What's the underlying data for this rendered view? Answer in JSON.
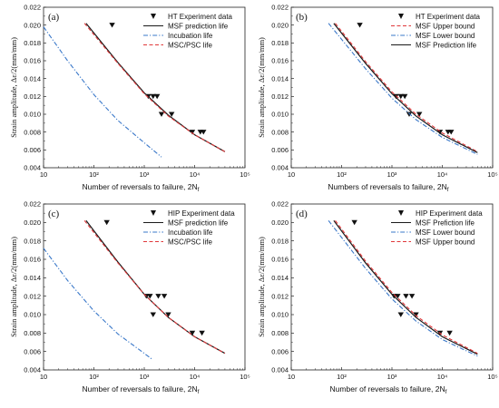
{
  "colors": {
    "msf": "#1a1a1a",
    "incubation": "#3a78c9",
    "msc_psc": "#e0383a",
    "upper": "#e0383a",
    "lower": "#3a78c9",
    "marker": "#111111"
  },
  "chart_data": [
    {
      "type": "line",
      "panel_label": "(a)",
      "xlabel": "Number of reversals to failure, 2N",
      "xlabel_sub": "f",
      "ylabel": "Strain amplitude, Δε/2(mm/mm)",
      "xscale": "log",
      "xlim": [
        10,
        100000
      ],
      "ylim": [
        0.004,
        0.022
      ],
      "xticks": [
        "10",
        "10²",
        "10³",
        "10⁴",
        "10⁵"
      ],
      "yticks": [
        "0.004",
        "0.006",
        "0.008",
        "0.010",
        "0.012",
        "0.014",
        "0.016",
        "0.018",
        "0.020",
        "0.022"
      ],
      "legend_position": "top-right",
      "series": [
        {
          "name": "HT Experiment data",
          "kind": "scatter",
          "color": "#111111",
          "x": [
            230,
            1200,
            1500,
            1800,
            2200,
            3500,
            9000,
            13000,
            15000
          ],
          "y": [
            0.02,
            0.012,
            0.012,
            0.012,
            0.01,
            0.01,
            0.008,
            0.008,
            0.008
          ]
        },
        {
          "name": "MSF prediction life",
          "kind": "line",
          "style": "solid",
          "color": "#1a1a1a",
          "x": [
            70,
            300,
            1000,
            3000,
            10000,
            40000
          ],
          "y": [
            0.0202,
            0.0158,
            0.0124,
            0.0099,
            0.0077,
            0.0058
          ]
        },
        {
          "name": "Incubation life",
          "kind": "line",
          "style": "dashdot",
          "color": "#3a78c9",
          "x": [
            10,
            30,
            100,
            300,
            1000,
            2200
          ],
          "y": [
            0.0198,
            0.016,
            0.0122,
            0.0093,
            0.0068,
            0.0052
          ]
        },
        {
          "name": "MSC/PSC life",
          "kind": "line",
          "style": "dashed",
          "color": "#e0383a",
          "x": [
            65,
            300,
            1000,
            3000,
            10000,
            40000
          ],
          "y": [
            0.0202,
            0.0157,
            0.0123,
            0.0098,
            0.0077,
            0.0058
          ]
        }
      ]
    },
    {
      "type": "line",
      "panel_label": "(b)",
      "xlabel": "Numbers of reversals to failure, 2N",
      "xlabel_sub": "f",
      "ylabel": "Strain amplitude, Δε/2(mm/mm)",
      "xscale": "log",
      "xlim": [
        10,
        100000
      ],
      "ylim": [
        0.004,
        0.022
      ],
      "xticks": [
        "10",
        "10²",
        "10³",
        "10⁴",
        "10⁵"
      ],
      "yticks": [
        "0.004",
        "0.006",
        "0.008",
        "0.010",
        "0.012",
        "0.014",
        "0.016",
        "0.018",
        "0.020",
        "0.022"
      ],
      "legend_position": "top-right",
      "series": [
        {
          "name": "HT Experiment data",
          "kind": "scatter",
          "color": "#111111",
          "x": [
            230,
            1200,
            1500,
            1800,
            2200,
            3500,
            9000,
            13000,
            15000
          ],
          "y": [
            0.02,
            0.012,
            0.012,
            0.012,
            0.01,
            0.01,
            0.008,
            0.008,
            0.008
          ]
        },
        {
          "name": "MSF Upper bound",
          "kind": "line",
          "style": "dashed",
          "color": "#e0383a",
          "x": [
            75,
            300,
            1000,
            3000,
            10000,
            50000
          ],
          "y": [
            0.0202,
            0.0159,
            0.0125,
            0.01,
            0.0079,
            0.0058
          ]
        },
        {
          "name": "MSF Lower bound",
          "kind": "line",
          "style": "dashdot",
          "color": "#3a78c9",
          "x": [
            55,
            300,
            1000,
            3000,
            10000,
            50000
          ],
          "y": [
            0.0202,
            0.0151,
            0.0118,
            0.0094,
            0.0074,
            0.0055
          ]
        },
        {
          "name": "MSF Prediction life",
          "kind": "line",
          "style": "solid",
          "color": "#1a1a1a",
          "x": [
            70,
            300,
            1000,
            3000,
            10000,
            50000
          ],
          "y": [
            0.0202,
            0.0157,
            0.0123,
            0.0098,
            0.0077,
            0.0057
          ]
        }
      ]
    },
    {
      "type": "line",
      "panel_label": "(c)",
      "xlabel": "Number of reversals to failure, 2N",
      "xlabel_sub": "f",
      "ylabel": "Strain amplitude, Δε/2(mm/mm)",
      "xscale": "log",
      "xlim": [
        10,
        100000
      ],
      "ylim": [
        0.004,
        0.022
      ],
      "xticks": [
        "10",
        "10²",
        "10³",
        "10⁴",
        "10⁵"
      ],
      "yticks": [
        "0.004",
        "0.006",
        "0.008",
        "0.010",
        "0.012",
        "0.014",
        "0.016",
        "0.018",
        "0.020",
        "0.022"
      ],
      "legend_position": "top-right",
      "series": [
        {
          "name": "HIP Experiment data",
          "kind": "scatter",
          "color": "#111111",
          "x": [
            180,
            1100,
            1300,
            1500,
            1900,
            2500,
            3000,
            9000,
            14000
          ],
          "y": [
            0.02,
            0.012,
            0.012,
            0.01,
            0.012,
            0.012,
            0.01,
            0.008,
            0.008
          ]
        },
        {
          "name": "MSF prediction life",
          "kind": "line",
          "style": "solid",
          "color": "#1a1a1a",
          "x": [
            70,
            300,
            1000,
            3000,
            10000,
            40000
          ],
          "y": [
            0.0202,
            0.0157,
            0.0122,
            0.0097,
            0.0076,
            0.0058
          ]
        },
        {
          "name": "Incubation life",
          "kind": "line",
          "style": "dashdot",
          "color": "#3a78c9",
          "x": [
            10,
            30,
            100,
            300,
            1000,
            1400
          ],
          "y": [
            0.0172,
            0.0137,
            0.0104,
            0.0079,
            0.0058,
            0.0052
          ]
        },
        {
          "name": "MSC/PSC life",
          "kind": "line",
          "style": "dashed",
          "color": "#e0383a",
          "x": [
            65,
            300,
            1000,
            3000,
            10000,
            40000
          ],
          "y": [
            0.0202,
            0.0156,
            0.0122,
            0.0097,
            0.0076,
            0.0058
          ]
        }
      ]
    },
    {
      "type": "line",
      "panel_label": "(d)",
      "xlabel": "Number of reversals to failure, 2N",
      "xlabel_sub": "f",
      "ylabel": "Strain amplitude, Δε/2(mm/mm)",
      "xscale": "log",
      "xlim": [
        10,
        100000
      ],
      "ylim": [
        0.004,
        0.022
      ],
      "xticks": [
        "10",
        "10²",
        "10³",
        "10⁴",
        "10⁵"
      ],
      "yticks": [
        "0.004",
        "0.006",
        "0.008",
        "0.010",
        "0.012",
        "0.014",
        "0.016",
        "0.018",
        "0.020",
        "0.022"
      ],
      "legend_position": "top-right",
      "series": [
        {
          "name": "HIP Experiment data",
          "kind": "scatter",
          "color": "#111111",
          "x": [
            180,
            1100,
            1300,
            1500,
            1900,
            2500,
            3000,
            9000,
            14000
          ],
          "y": [
            0.02,
            0.012,
            0.012,
            0.01,
            0.012,
            0.012,
            0.01,
            0.008,
            0.008
          ]
        },
        {
          "name": "MSF Prefiction life",
          "kind": "line",
          "style": "solid",
          "color": "#1a1a1a",
          "x": [
            70,
            300,
            1000,
            3000,
            10000,
            50000
          ],
          "y": [
            0.0202,
            0.0156,
            0.0122,
            0.0097,
            0.0076,
            0.0057
          ]
        },
        {
          "name": "MSF Lower bound",
          "kind": "line",
          "style": "dashdot",
          "color": "#3a78c9",
          "x": [
            55,
            300,
            1000,
            3000,
            10000,
            50000
          ],
          "y": [
            0.0202,
            0.015,
            0.0117,
            0.0093,
            0.0073,
            0.0055
          ]
        },
        {
          "name": "MSF Upper bound",
          "kind": "line",
          "style": "dashed",
          "color": "#e0383a",
          "x": [
            75,
            300,
            1000,
            3000,
            10000,
            50000
          ],
          "y": [
            0.0202,
            0.0158,
            0.0124,
            0.0099,
            0.0078,
            0.0058
          ]
        }
      ]
    }
  ]
}
